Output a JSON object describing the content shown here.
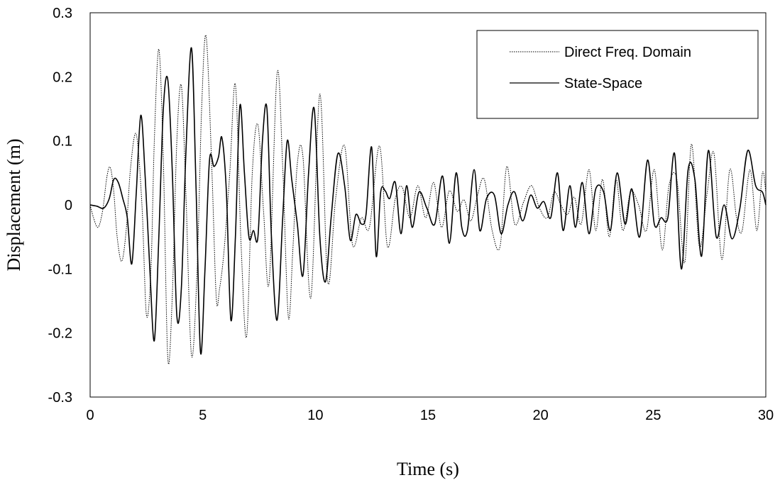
{
  "chart_data": {
    "type": "line",
    "title": "",
    "xlabel": "Time (s)",
    "ylabel": "Displacement (m)",
    "xlim": [
      0,
      30
    ],
    "ylim": [
      -0.3,
      0.3
    ],
    "x_ticks": [
      0,
      5,
      10,
      15,
      20,
      25,
      30
    ],
    "x_tick_labels": [
      "0",
      "5",
      "10",
      "15",
      "20",
      "25",
      "30"
    ],
    "y_ticks": [
      -0.3,
      -0.2,
      -0.1,
      0,
      0.1,
      0.2,
      0.3
    ],
    "y_tick_labels": [
      "-0.3",
      "-0.2",
      "-0.1",
      "0",
      "0.1",
      "0.2",
      "0.3"
    ],
    "grid": false,
    "legend_position": "top-right",
    "series": [
      {
        "name": "Direct Freq. Domain",
        "line_style": "dotted",
        "color": "#000000",
        "x": [
          0,
          0.15,
          0.35,
          0.55,
          0.75,
          0.9,
          1.05,
          1.2,
          1.4,
          1.6,
          1.8,
          2.05,
          2.3,
          2.5,
          2.7,
          2.85,
          3.05,
          3.25,
          3.45,
          3.65,
          3.85,
          4.05,
          4.25,
          4.5,
          4.75,
          4.95,
          5.15,
          5.4,
          5.6,
          5.75,
          5.95,
          6.2,
          6.45,
          6.7,
          6.95,
          7.2,
          7.45,
          7.7,
          7.95,
          8.3,
          8.55,
          8.8,
          9.0,
          9.2,
          9.45,
          9.8,
          10.2,
          10.55,
          10.9,
          11.3,
          11.65,
          12.05,
          12.4,
          12.85,
          13.2,
          13.55,
          13.85,
          14.2,
          14.55,
          14.9,
          15.25,
          15.6,
          15.95,
          16.3,
          16.6,
          16.9,
          17.2,
          17.5,
          17.85,
          18.2,
          18.5,
          18.85,
          19.25,
          19.6,
          19.95,
          20.3,
          20.6,
          20.9,
          21.2,
          21.5,
          21.8,
          22.15,
          22.45,
          22.75,
          23.05,
          23.35,
          23.65,
          24.0,
          24.35,
          24.7,
          25.05,
          25.4,
          25.7,
          26.05,
          26.4,
          26.7,
          27.05,
          27.4,
          27.7,
          28.05,
          28.4,
          28.7,
          28.95,
          29.3,
          29.6,
          29.85,
          30.0
        ],
        "y": [
          0,
          -0.02,
          -0.035,
          -0.01,
          0.045,
          0.058,
          0.02,
          -0.05,
          -0.088,
          -0.04,
          0.06,
          0.11,
          0.0,
          -0.172,
          -0.1,
          0.1,
          0.243,
          0.07,
          -0.24,
          -0.14,
          0.1,
          0.186,
          0.02,
          -0.235,
          -0.1,
          0.15,
          0.263,
          0.06,
          -0.145,
          -0.13,
          -0.07,
          0.05,
          0.188,
          -0.06,
          -0.205,
          0.05,
          0.125,
          -0.01,
          -0.12,
          0.205,
          0.06,
          -0.175,
          -0.07,
          0.065,
          0.075,
          -0.145,
          0.173,
          -0.12,
          0.01,
          0.092,
          -0.062,
          -0.02,
          -0.035,
          0.092,
          -0.065,
          0.01,
          0.028,
          -0.02,
          0.03,
          -0.02,
          0.035,
          -0.035,
          0.022,
          -0.01,
          0.008,
          -0.025,
          0.015,
          0.04,
          -0.04,
          -0.065,
          0.06,
          -0.03,
          0.005,
          0.03,
          -0.005,
          -0.02,
          0.02,
          0.0,
          -0.015,
          0.012,
          -0.03,
          0.055,
          -0.04,
          0.04,
          -0.05,
          0.04,
          -0.04,
          0.02,
          0.0,
          -0.04,
          0.055,
          -0.07,
          0.03,
          0.04,
          -0.09,
          0.095,
          -0.065,
          0.02,
          0.08,
          -0.085,
          0.055,
          -0.02,
          -0.04,
          0.055,
          -0.04,
          0.05,
          0.02
        ]
      },
      {
        "name": "State-Space",
        "line_style": "solid",
        "color": "#000000",
        "x": [
          0,
          0.3,
          0.6,
          0.85,
          1.05,
          1.25,
          1.45,
          1.65,
          1.85,
          2.05,
          2.25,
          2.45,
          2.65,
          2.85,
          3.05,
          3.25,
          3.45,
          3.65,
          3.85,
          4.05,
          4.25,
          4.5,
          4.7,
          4.9,
          5.1,
          5.3,
          5.5,
          5.7,
          5.85,
          6.05,
          6.25,
          6.45,
          6.65,
          6.85,
          7.05,
          7.25,
          7.45,
          7.65,
          7.85,
          8.05,
          8.3,
          8.55,
          8.75,
          8.95,
          9.2,
          9.45,
          9.7,
          9.95,
          10.2,
          10.45,
          10.7,
          11.0,
          11.3,
          11.55,
          11.8,
          12.05,
          12.25,
          12.5,
          12.7,
          12.9,
          13.1,
          13.3,
          13.55,
          13.8,
          14.05,
          14.3,
          14.6,
          14.95,
          15.3,
          15.65,
          15.95,
          16.25,
          16.5,
          16.75,
          17.05,
          17.3,
          17.6,
          17.95,
          18.25,
          18.55,
          18.85,
          19.2,
          19.55,
          19.85,
          20.15,
          20.45,
          20.75,
          21.0,
          21.3,
          21.55,
          21.85,
          22.15,
          22.45,
          22.8,
          23.1,
          23.4,
          23.75,
          24.05,
          24.4,
          24.75,
          25.05,
          25.35,
          25.65,
          25.95,
          26.25,
          26.55,
          26.85,
          27.15,
          27.45,
          27.8,
          28.15,
          28.5,
          28.85,
          29.2,
          29.55,
          29.85,
          30.0
        ],
        "y": [
          0,
          -0.002,
          -0.005,
          0.01,
          0.04,
          0.035,
          0.01,
          -0.02,
          -0.092,
          0.02,
          0.14,
          0.04,
          -0.1,
          -0.212,
          -0.05,
          0.15,
          0.195,
          0.05,
          -0.173,
          -0.13,
          0.08,
          0.245,
          0.03,
          -0.23,
          -0.1,
          0.07,
          0.06,
          0.075,
          0.105,
          0.02,
          -0.18,
          -0.05,
          0.155,
          0.05,
          -0.05,
          -0.04,
          -0.05,
          0.1,
          0.15,
          -0.05,
          -0.18,
          -0.02,
          0.1,
          0.04,
          -0.03,
          -0.11,
          0.05,
          0.15,
          -0.05,
          -0.12,
          -0.02,
          0.08,
          0.03,
          -0.055,
          -0.015,
          -0.03,
          -0.015,
          0.09,
          -0.08,
          0.02,
          0.022,
          0.01,
          0.035,
          -0.045,
          0.03,
          -0.035,
          0.02,
          -0.005,
          -0.03,
          0.045,
          -0.06,
          0.05,
          -0.035,
          -0.04,
          0.055,
          -0.04,
          0.01,
          0.015,
          -0.045,
          0.0,
          0.02,
          -0.025,
          0.015,
          -0.005,
          0.005,
          -0.02,
          0.05,
          -0.04,
          0.03,
          -0.035,
          0.035,
          -0.045,
          0.025,
          0.02,
          -0.04,
          0.05,
          -0.03,
          0.025,
          -0.05,
          0.07,
          -0.03,
          -0.02,
          -0.02,
          0.08,
          -0.1,
          0.055,
          0.04,
          -0.08,
          0.085,
          -0.05,
          0.0,
          -0.053,
          -0.005,
          0.085,
          0.03,
          0.02,
          0.0
        ]
      }
    ]
  }
}
